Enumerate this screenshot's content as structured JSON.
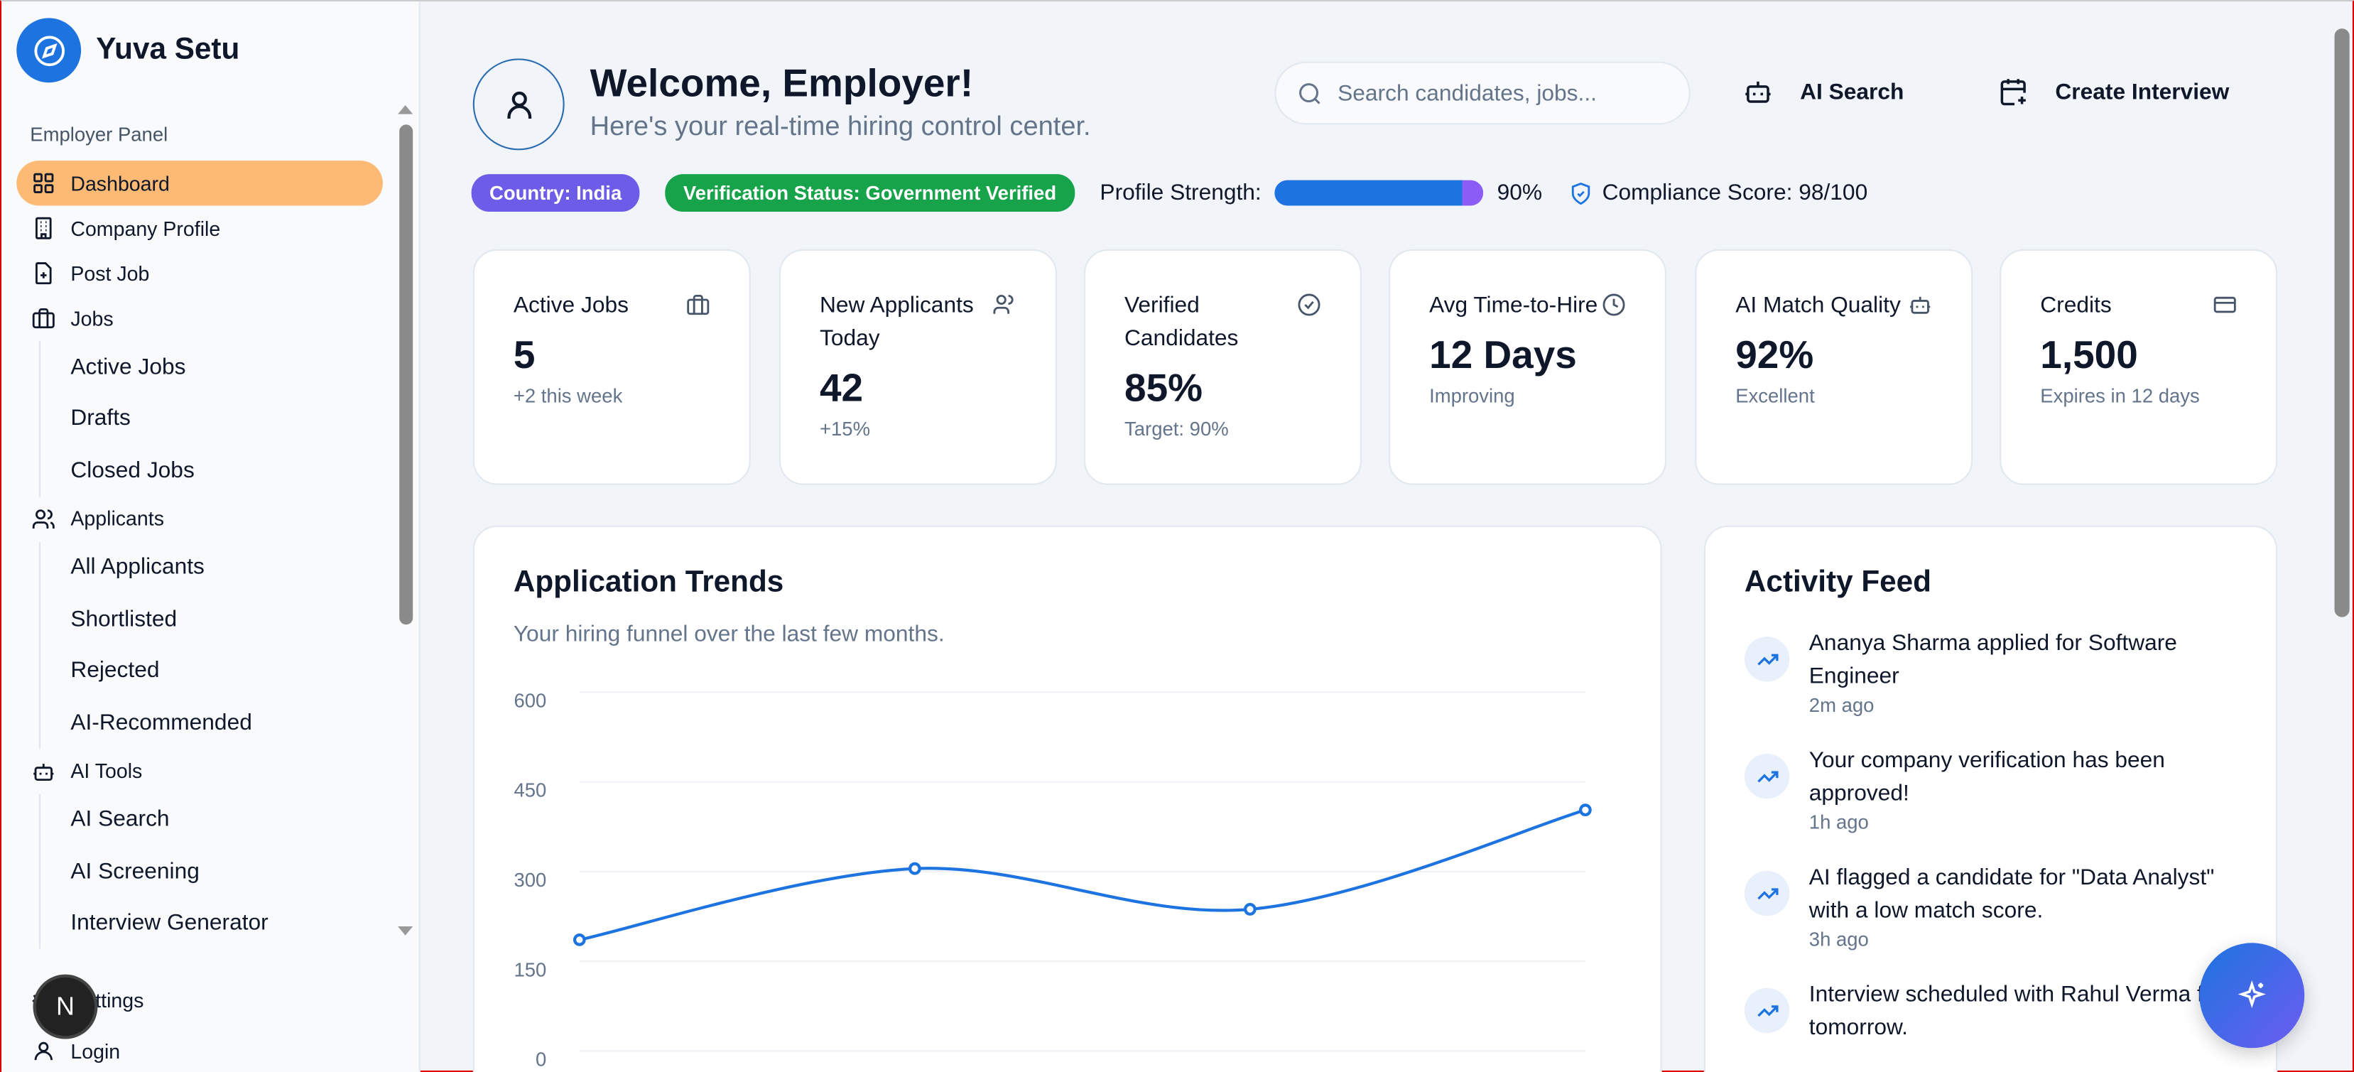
{
  "sidebar": {
    "brand": "Yuva Setu",
    "panel_label": "Employer Panel",
    "items": {
      "dashboard": "Dashboard",
      "company_profile": "Company Profile",
      "post_job": "Post Job",
      "jobs": "Jobs",
      "applicants": "Applicants",
      "ai_tools": "AI Tools",
      "settings": "Settings",
      "login": "Login"
    },
    "jobs_sub": [
      "Active Jobs",
      "Drafts",
      "Closed Jobs"
    ],
    "applicants_sub": [
      "All Applicants",
      "Shortlisted",
      "Rejected",
      "AI-Recommended"
    ],
    "ai_sub": [
      "AI Search",
      "AI Screening",
      "Interview Generator"
    ],
    "next_badge": "N"
  },
  "header": {
    "title": "Welcome, Employer!",
    "subtitle": "Here's your real-time hiring control center.",
    "search_placeholder": "Search candidates, jobs...",
    "ai_search": "AI Search",
    "create_interview": "Create Interview"
  },
  "status": {
    "country": "Country: India",
    "verification": "Verification Status: Government Verified",
    "profile_label": "Profile Strength:",
    "profile_percent": 90,
    "profile_text": "90%",
    "compliance": "Compliance Score: 98/100",
    "colors": {
      "country": "#6c5ce7",
      "verification": "#16a34a",
      "accent": "#1d74e0"
    }
  },
  "stats": [
    {
      "label": "Active Jobs",
      "value": "5",
      "sub": "+2 this week",
      "icon": "briefcase-icon"
    },
    {
      "label": "New Applicants Today",
      "value": "42",
      "sub": "+15%",
      "icon": "users-icon"
    },
    {
      "label": "Verified Candidates",
      "value": "85%",
      "sub": "Target: 90%",
      "icon": "check-circle-icon"
    },
    {
      "label": "Avg Time-to-Hire",
      "value": "12 Days",
      "sub": "Improving",
      "icon": "clock-icon"
    },
    {
      "label": "AI Match Quality",
      "value": "92%",
      "sub": "Excellent",
      "icon": "bot-icon"
    },
    {
      "label": "Credits",
      "value": "1,500",
      "sub": "Expires in 12 days",
      "icon": "credit-card-icon"
    }
  ],
  "trends": {
    "title": "Application Trends",
    "subtitle": "Your hiring funnel over the last few months."
  },
  "chart_data": {
    "type": "line",
    "y_ticks": [
      "600",
      "450",
      "300",
      "150",
      "0"
    ],
    "ylim": [
      0,
      600
    ],
    "grid": true,
    "series": [
      {
        "values": [
          186,
          305,
          237,
          403
        ],
        "color": "#1d74e0"
      }
    ]
  },
  "feed": {
    "title": "Activity Feed",
    "items": [
      {
        "text": "Ananya Sharma applied for Software Engineer",
        "time": "2m ago"
      },
      {
        "text": "Your company verification has been approved!",
        "time": "1h ago"
      },
      {
        "text": "AI flagged a candidate for \"Data Analyst\" with a low match score.",
        "time": "3h ago"
      },
      {
        "text": "Interview scheduled with Rahul Verma for tomorrow.",
        "time": ""
      }
    ]
  }
}
